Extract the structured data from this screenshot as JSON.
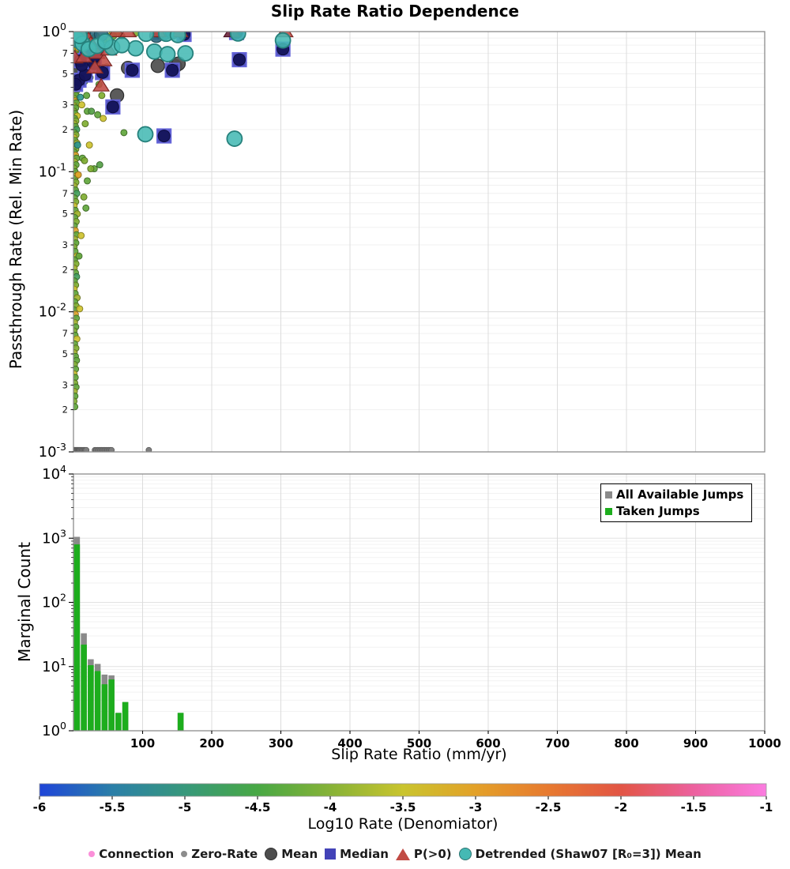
{
  "title": "Slip Rate Ratio Dependence",
  "axes": {
    "top": {
      "ylabel": "Passthrough Rate (Rel. Min Rate)",
      "y_major_exponents": [
        0,
        -1,
        -2,
        -3
      ],
      "y_minor_digits": [
        7,
        5,
        3,
        2
      ]
    },
    "bottom": {
      "ylabel": "Marginal Count",
      "xlabel": "Slip Rate Ratio (mm/yr)",
      "x_ticks": [
        100,
        200,
        300,
        400,
        500,
        600,
        700,
        800,
        900,
        1000
      ],
      "y_major_exponents": [
        4,
        3,
        2,
        1,
        0
      ]
    }
  },
  "colorbar": {
    "label": "Log10 Rate (Denomiator)",
    "ticks": [
      -6,
      -5.5,
      -5,
      -4.5,
      -4,
      -3.5,
      -3,
      -2.5,
      -2,
      -1.5,
      -1
    ],
    "gradient": [
      "#1f45d8",
      "#2a7fa8",
      "#37987b",
      "#48a844",
      "#86b237",
      "#c9c42e",
      "#e3a129",
      "#e77a30",
      "#e25545",
      "#ec619e",
      "#fb7ce0"
    ]
  },
  "hist_legend": [
    {
      "label": "All Available Jumps",
      "color": "#8a8a8a"
    },
    {
      "label": "Taken Jumps",
      "color": "#1dad1d"
    }
  ],
  "marker_legend": [
    {
      "label": "Connection",
      "marker": "dot",
      "color": "#fb8fd9"
    },
    {
      "label": "Zero-Rate",
      "marker": "dot",
      "color": "#8c8c8c"
    },
    {
      "label": "Mean",
      "marker": "circle",
      "color": "#4d4d4d"
    },
    {
      "label": "Median",
      "marker": "square",
      "color": "#4343b8"
    },
    {
      "label": "P(>0)",
      "marker": "triangle",
      "color": "#c14b44"
    },
    {
      "label": "Detrended (Shaw07 [R₀=3]) Mean",
      "marker": "circle",
      "color": "#45b9b4"
    }
  ],
  "chart_data": {
    "scatter": {
      "type": "scatter",
      "title": "Slip Rate Ratio Dependence",
      "xlabel": "Slip Rate Ratio (mm/yr)",
      "ylabel": "Passthrough Rate (Rel. Min Rate)",
      "xlim": [
        0,
        1000
      ],
      "ylog_lim": [
        -3,
        0
      ],
      "palette": [
        "#61a63c",
        "#7fac31",
        "#a3b32f",
        "#cdc22f",
        "#dfa32a",
        "#44a05f",
        "#2f978f",
        "#8aa733",
        "#55a046"
      ],
      "connection": [
        [
          0.5,
          0.97,
          1
        ],
        [
          2,
          0.95,
          0
        ],
        [
          1,
          0.9,
          2
        ],
        [
          3,
          0.88,
          5
        ],
        [
          0.8,
          0.85,
          0
        ],
        [
          2.5,
          0.82,
          1
        ],
        [
          1.5,
          0.79,
          3
        ],
        [
          4,
          0.76,
          0
        ],
        [
          0.6,
          0.73,
          2
        ],
        [
          2,
          0.7,
          0
        ],
        [
          3.5,
          0.67,
          4
        ],
        [
          1,
          0.645,
          0
        ],
        [
          2.8,
          0.62,
          1
        ],
        [
          0.5,
          0.6,
          7
        ],
        [
          4.5,
          0.575,
          0
        ],
        [
          1.8,
          0.55,
          2
        ],
        [
          3,
          0.53,
          0
        ],
        [
          0.7,
          0.51,
          3
        ],
        [
          2.2,
          0.49,
          1
        ],
        [
          4,
          0.47,
          0
        ],
        [
          1.2,
          0.45,
          5
        ],
        [
          3.2,
          0.43,
          0
        ],
        [
          0.9,
          0.415,
          2
        ],
        [
          2.6,
          0.4,
          1
        ],
        [
          5,
          0.38,
          0
        ],
        [
          1.4,
          0.365,
          3
        ],
        [
          3.8,
          0.35,
          0
        ],
        [
          0.6,
          0.335,
          1
        ],
        [
          2.1,
          0.32,
          4
        ],
        [
          4.2,
          0.31,
          0
        ],
        [
          1.1,
          0.295,
          2
        ],
        [
          3.1,
          0.285,
          0
        ],
        [
          0.8,
          0.27,
          1
        ],
        [
          2.4,
          0.26,
          0
        ],
        [
          5.5,
          0.25,
          3
        ],
        [
          1.6,
          0.24,
          0
        ],
        [
          3.4,
          0.23,
          1
        ],
        [
          0.9,
          0.22,
          2
        ],
        [
          2.7,
          0.21,
          0
        ],
        [
          4.6,
          0.2,
          5
        ],
        [
          1.3,
          0.19,
          0
        ],
        [
          3.6,
          0.183,
          1
        ],
        [
          0.7,
          0.175,
          3
        ],
        [
          2.2,
          0.167,
          0
        ],
        [
          5,
          0.16,
          2
        ],
        [
          1.7,
          0.152,
          0
        ],
        [
          3.3,
          0.145,
          1
        ],
        [
          1,
          0.138,
          0
        ],
        [
          2.9,
          0.131,
          4
        ],
        [
          4.4,
          0.125,
          0
        ],
        [
          1.5,
          0.118,
          2
        ],
        [
          3.7,
          0.112,
          0
        ],
        [
          0.8,
          0.106,
          1
        ],
        [
          2.3,
          0.1,
          0
        ],
        [
          5.2,
          0.094,
          3
        ],
        [
          1.9,
          0.089,
          0
        ],
        [
          3.5,
          0.084,
          1
        ],
        [
          1.1,
          0.079,
          2
        ],
        [
          2.8,
          0.074,
          0
        ],
        [
          4.8,
          0.07,
          5
        ],
        [
          1.4,
          0.065,
          0
        ],
        [
          3.2,
          0.061,
          1
        ],
        [
          0.9,
          0.057,
          3
        ],
        [
          2.5,
          0.053,
          0
        ],
        [
          5.5,
          0.05,
          2
        ],
        [
          1.8,
          0.047,
          0
        ],
        [
          3.9,
          0.044,
          1
        ],
        [
          1.2,
          0.041,
          0
        ],
        [
          2.6,
          0.038,
          4
        ],
        [
          4.3,
          0.0355,
          0
        ],
        [
          1.6,
          0.033,
          2
        ],
        [
          3.4,
          0.031,
          0
        ],
        [
          0.8,
          0.029,
          1
        ],
        [
          2.2,
          0.027,
          0
        ],
        [
          5,
          0.025,
          3
        ],
        [
          1.5,
          0.0235,
          0
        ],
        [
          3.6,
          0.022,
          1
        ],
        [
          1,
          0.0205,
          2
        ],
        [
          2.9,
          0.019,
          0
        ],
        [
          4.5,
          0.0178,
          5
        ],
        [
          1.3,
          0.0166,
          0
        ],
        [
          3.1,
          0.0155,
          1
        ],
        [
          0.9,
          0.0145,
          3
        ],
        [
          2.4,
          0.0135,
          0
        ],
        [
          5.3,
          0.0126,
          2
        ],
        [
          1.7,
          0.0118,
          0
        ],
        [
          3.8,
          0.011,
          1
        ],
        [
          1.1,
          0.0103,
          0
        ],
        [
          2.7,
          0.0096,
          4
        ],
        [
          4.1,
          0.009,
          0
        ],
        [
          1.5,
          0.0084,
          2
        ],
        [
          3.3,
          0.0078,
          0
        ],
        [
          0.8,
          0.0073,
          1
        ],
        [
          2.3,
          0.0068,
          0
        ],
        [
          4.9,
          0.0064,
          3
        ],
        [
          1.6,
          0.0059,
          0
        ],
        [
          3.5,
          0.0055,
          1
        ],
        [
          1,
          0.0051,
          2
        ],
        [
          2.8,
          0.0048,
          0
        ],
        [
          4.4,
          0.0045,
          0
        ],
        [
          1.4,
          0.0042,
          1
        ],
        [
          3,
          0.0039,
          0
        ],
        [
          0.9,
          0.0036,
          3
        ],
        [
          2.5,
          0.0034,
          0
        ],
        [
          1.8,
          0.0031,
          1
        ],
        [
          3.7,
          0.0029,
          0
        ],
        [
          1.2,
          0.0027,
          2
        ],
        [
          2.1,
          0.0025,
          0
        ],
        [
          0.7,
          0.0023,
          1
        ],
        [
          1.9,
          0.0021,
          0
        ],
        [
          9,
          0.82,
          0
        ],
        [
          12,
          0.75,
          1
        ],
        [
          14,
          0.66,
          0
        ],
        [
          10,
          0.55,
          2
        ],
        [
          16,
          0.44,
          0
        ],
        [
          12,
          0.3,
          3
        ],
        [
          20,
          0.27,
          0
        ],
        [
          26,
          0.27,
          8
        ],
        [
          17,
          0.22,
          1
        ],
        [
          30,
          0.105,
          0
        ],
        [
          38,
          0.112,
          8
        ],
        [
          23,
          0.155,
          3
        ],
        [
          35,
          0.255,
          0
        ],
        [
          43,
          0.24,
          3
        ],
        [
          73,
          0.19,
          0
        ],
        [
          15,
          0.066,
          1
        ],
        [
          18,
          0.055,
          0
        ],
        [
          11,
          0.035,
          3
        ],
        [
          28,
          0.9,
          0
        ],
        [
          33,
          0.93,
          1
        ],
        [
          44,
          0.88,
          0
        ],
        [
          55,
          0.95,
          2
        ],
        [
          48,
          0.56,
          0
        ],
        [
          21,
          0.6,
          1
        ],
        [
          24,
          0.47,
          0
        ],
        [
          64,
          0.97,
          1
        ],
        [
          70,
          0.93,
          0
        ],
        [
          90,
          0.975,
          1
        ],
        [
          37,
          0.42,
          0
        ],
        [
          41,
          0.35,
          1
        ],
        [
          13,
          0.125,
          0
        ],
        [
          9,
          0.0105,
          3
        ],
        [
          8,
          0.025,
          0
        ],
        [
          7,
          0.095,
          4
        ],
        [
          6,
          0.155,
          6
        ],
        [
          10,
          0.34,
          6
        ],
        [
          7,
          0.76,
          4
        ],
        [
          6,
          0.52,
          6
        ],
        [
          8,
          0.4,
          4
        ],
        [
          19,
          0.35,
          0
        ],
        [
          52,
          0.88,
          1
        ],
        [
          58,
          0.93,
          0
        ],
        [
          16,
          0.8,
          5
        ],
        [
          11,
          0.7,
          0
        ],
        [
          25,
          0.105,
          1
        ],
        [
          20,
          0.086,
          0
        ],
        [
          16,
          0.12,
          1
        ]
      ],
      "zero_rate_y": 0.00103,
      "zero_rate_x": [
        0.5,
        1.5,
        2.5,
        3.5,
        4.5,
        5.5,
        6.5,
        7.5,
        8.5,
        9.5,
        11,
        12.5,
        14,
        15.5,
        17,
        18.5,
        31,
        33,
        35,
        37,
        39,
        41,
        43,
        45,
        47,
        49,
        51,
        53,
        55,
        109
      ],
      "mean": [
        [
          5,
          0.92
        ],
        [
          9,
          0.51
        ],
        [
          27,
          0.57
        ],
        [
          42,
          0.52
        ],
        [
          63,
          0.35
        ],
        [
          79,
          0.55
        ],
        [
          122,
          0.57
        ],
        [
          147,
          0.565
        ],
        [
          152,
          0.59
        ]
      ],
      "median": [
        [
          8,
          0.45
        ],
        [
          17,
          0.49
        ],
        [
          30,
          0.59
        ],
        [
          42,
          0.51
        ],
        [
          57,
          0.29
        ],
        [
          85,
          0.53
        ],
        [
          125,
          0.985
        ],
        [
          131,
          0.18
        ],
        [
          143,
          0.53
        ],
        [
          160,
          0.955
        ],
        [
          240,
          0.63
        ],
        [
          303,
          0.75
        ],
        [
          19,
          0.71
        ],
        [
          34,
          0.73
        ],
        [
          3,
          0.42
        ],
        [
          10,
          0.62
        ],
        [
          236,
          0.985
        ]
      ],
      "navy_circles": [
        [
          31,
          0.67
        ],
        [
          12,
          0.575
        ]
      ],
      "triangles": [
        [
          62,
          1.0
        ],
        [
          79,
          1.0
        ],
        [
          122,
          1.0
        ],
        [
          154,
          1.0
        ],
        [
          306,
          1.0
        ],
        [
          14,
          0.92
        ],
        [
          22,
          0.88
        ],
        [
          34,
          0.7
        ],
        [
          44,
          0.62
        ],
        [
          51,
          0.74
        ],
        [
          31,
          0.55
        ],
        [
          40,
          0.41
        ],
        [
          2,
          0.65
        ],
        [
          15,
          0.66
        ],
        [
          25,
          0.82
        ]
      ],
      "triangles_dark": [
        [
          229,
          1.0
        ]
      ],
      "teal": [
        [
          5,
          0.88
        ],
        [
          13,
          0.82
        ],
        [
          22,
          0.75
        ],
        [
          34,
          0.79
        ],
        [
          56,
          0.77
        ],
        [
          90,
          0.76
        ],
        [
          117,
          0.72
        ],
        [
          136,
          0.69
        ],
        [
          162,
          0.7
        ],
        [
          105,
          0.965
        ],
        [
          134,
          0.965
        ],
        [
          151,
          0.945
        ],
        [
          238,
          0.97
        ],
        [
          303,
          0.865
        ],
        [
          104,
          0.185
        ],
        [
          233,
          0.172
        ],
        [
          9,
          0.93
        ],
        [
          46,
          0.85
        ],
        [
          70,
          0.8
        ]
      ],
      "slate": [
        [
          132,
          0.975
        ],
        [
          143,
          0.99
        ],
        [
          120,
          0.935
        ],
        [
          24,
          0.975
        ],
        [
          40,
          0.955
        ],
        [
          3,
          0.99
        ],
        [
          15,
          0.985
        ]
      ]
    },
    "histogram": {
      "type": "bar",
      "ylabel": "Marginal Count",
      "ylog_lim": [
        0,
        4
      ],
      "bins": [
        {
          "x0": 0,
          "x1": 10,
          "all": 1050,
          "taken": 800
        },
        {
          "x0": 10,
          "x1": 20,
          "all": 33,
          "taken": 22
        },
        {
          "x0": 20,
          "x1": 30,
          "all": 13,
          "taken": 10.5
        },
        {
          "x0": 30,
          "x1": 40,
          "all": 11,
          "taken": 8.5
        },
        {
          "x0": 40,
          "x1": 50,
          "all": 7.5,
          "taken": 5.3
        },
        {
          "x0": 50,
          "x1": 60,
          "all": 7.3,
          "taken": 6.3
        },
        {
          "x0": 60,
          "x1": 70,
          "all": 1.9,
          "taken": 1.9
        },
        {
          "x0": 70,
          "x1": 80,
          "all": 2.8,
          "taken": 2.8
        },
        {
          "x0": 150,
          "x1": 160,
          "all": 1.9,
          "taken": 1.9
        }
      ]
    }
  }
}
